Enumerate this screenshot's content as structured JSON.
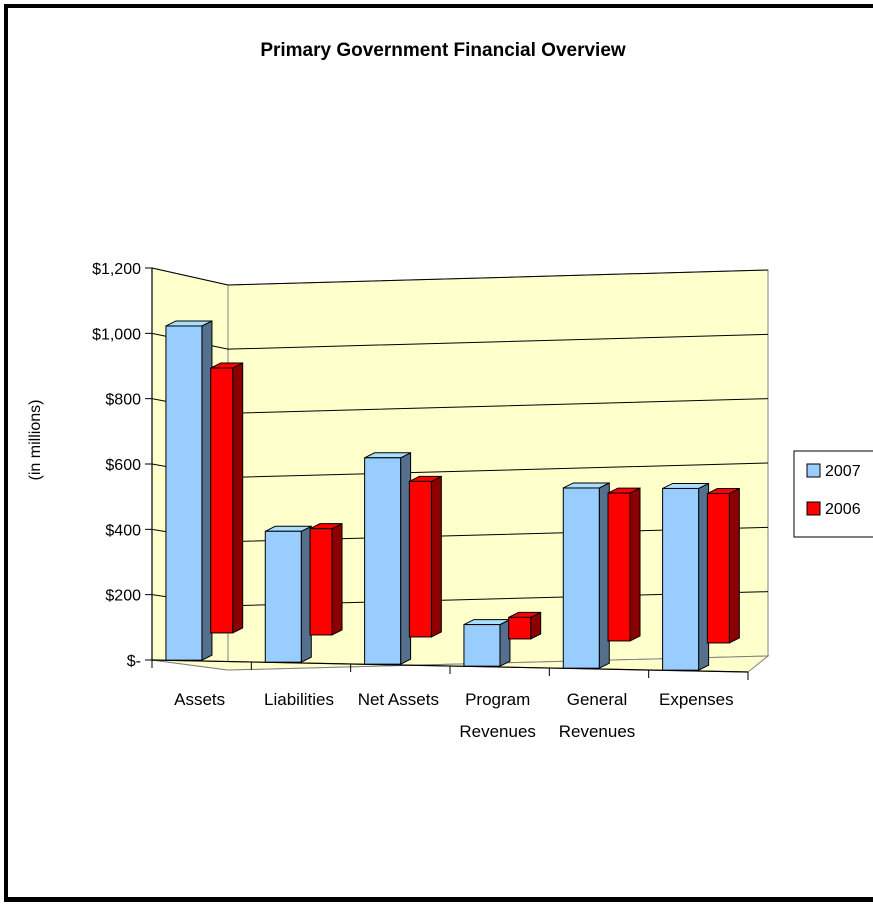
{
  "chart_data": {
    "type": "bar",
    "title": "Primary Government Financial Overview",
    "xlabel": "",
    "ylabel": "(in millions)",
    "categories": [
      [
        "Assets"
      ],
      [
        "Liabilities"
      ],
      [
        "Net Assets"
      ],
      [
        "Program",
        "Revenues"
      ],
      [
        "General",
        "Revenues"
      ],
      [
        "Expenses"
      ]
    ],
    "series": [
      {
        "name": "2007",
        "values": [
          1085,
          425,
          670,
          135,
          585,
          590
        ],
        "color": "#99CCFF"
      },
      {
        "name": "2006",
        "values": [
          860,
          345,
          505,
          70,
          480,
          485
        ],
        "color": "#FF0000"
      }
    ],
    "ylim": [
      0,
      1200
    ],
    "yticks": [
      0,
      200,
      400,
      600,
      800,
      1000,
      1200
    ],
    "ytick_labels": [
      "$-",
      "$200",
      "$400",
      "$600",
      "$800",
      "$1,000",
      "$1,200"
    ],
    "legend_position": "right",
    "grid": true,
    "style": "3d",
    "wall_color": "#FFFFCC"
  }
}
